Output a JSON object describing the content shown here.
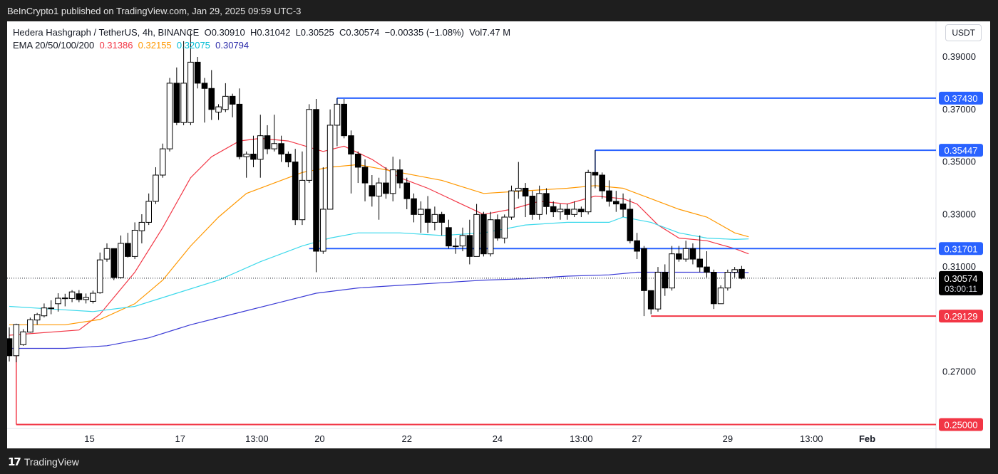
{
  "publisher": "BeInCrypto1 published on TradingView.com, Jan 29, 2025 09:59 UTC-3",
  "brand": "TradingView",
  "currency_button": "USDT",
  "legend": {
    "symbol": "Hedera Hashgraph / TetherUS, 4h, BINANCE",
    "o_label": "O",
    "o": "0.30910",
    "h_label": "H",
    "h": "0.31042",
    "l_label": "L",
    "l": "0.30525",
    "c_label": "C",
    "c": "0.30574",
    "change": "−0.00335 (−1.08%)",
    "vol_label": "Vol",
    "vol": "7.47 M",
    "ema_label": "EMA 20/50/100/200",
    "ema20": "0.31386",
    "ema50": "0.32155",
    "ema100": "0.32075",
    "ema200": "0.30794"
  },
  "colors": {
    "up": "#ffffff",
    "down": "#000000",
    "candle_border": "#000000",
    "ema20": "#f23645",
    "ema50": "#ff9800",
    "ema100": "#3dd9eb",
    "ema200": "#3d3dd6",
    "resistance": "#2962ff",
    "support": "#f23645",
    "price_tag": "#000000"
  },
  "chart_data": {
    "type": "candlestick",
    "ylim": [
      0.2485,
      0.4022
    ],
    "yticks": [
      "0.39000",
      "0.37000",
      "0.35000",
      "0.33000",
      "0.31000",
      "0.29000",
      "0.27000"
    ],
    "xticks": [
      "15",
      "17",
      "13:00",
      "20",
      "22",
      "24",
      "13:00",
      "27",
      "29",
      "13:00",
      "Feb"
    ],
    "candles": [
      [
        0.2827,
        0.2762,
        0.287,
        0.274
      ],
      [
        0.2762,
        0.2881,
        0.2884,
        0.2737
      ],
      [
        0.2804,
        0.2853,
        0.2863,
        0.28
      ],
      [
        0.2852,
        0.2899,
        0.2907,
        0.285
      ],
      [
        0.2898,
        0.2919,
        0.2925,
        0.288
      ],
      [
        0.2914,
        0.2944,
        0.2961,
        0.2908
      ],
      [
        0.2944,
        0.2944,
        0.2973,
        0.292
      ],
      [
        0.296,
        0.2981,
        0.3,
        0.293
      ],
      [
        0.2981,
        0.2982,
        0.2998,
        0.295
      ],
      [
        0.298,
        0.3005,
        0.3012,
        0.2966
      ],
      [
        0.2998,
        0.2976,
        0.3012,
        0.2966
      ],
      [
        0.2976,
        0.2984,
        0.2999,
        0.2961
      ],
      [
        0.2969,
        0.3,
        0.301,
        0.2961
      ],
      [
        0.3002,
        0.3127,
        0.3155,
        0.2998
      ],
      [
        0.313,
        0.317,
        0.319,
        0.312
      ],
      [
        0.317,
        0.306,
        0.317,
        0.305
      ],
      [
        0.306,
        0.319,
        0.322,
        0.3055
      ],
      [
        0.319,
        0.314,
        0.323,
        0.3136
      ],
      [
        0.314,
        0.324,
        0.327,
        0.313
      ],
      [
        0.3238,
        0.327,
        0.3301,
        0.319
      ],
      [
        0.327,
        0.335,
        0.338,
        0.326
      ],
      [
        0.335,
        0.345,
        0.348,
        0.334
      ],
      [
        0.345,
        0.355,
        0.357,
        0.344
      ],
      [
        0.355,
        0.38,
        0.382,
        0.354
      ],
      [
        0.38,
        0.365,
        0.386,
        0.364
      ],
      [
        0.365,
        0.38,
        0.396,
        0.364
      ],
      [
        0.365,
        0.388,
        0.4,
        0.364
      ],
      [
        0.388,
        0.38,
        0.39,
        0.378
      ],
      [
        0.38,
        0.378,
        0.382,
        0.365
      ],
      [
        0.378,
        0.37,
        0.385,
        0.366
      ],
      [
        0.369,
        0.371,
        0.372,
        0.366
      ],
      [
        0.37,
        0.375,
        0.38,
        0.369
      ],
      [
        0.375,
        0.372,
        0.376,
        0.367
      ],
      [
        0.372,
        0.352,
        0.378,
        0.351
      ],
      [
        0.352,
        0.353,
        0.354,
        0.344
      ],
      [
        0.353,
        0.351,
        0.36,
        0.348
      ],
      [
        0.351,
        0.36,
        0.368,
        0.344
      ],
      [
        0.36,
        0.355,
        0.364,
        0.353
      ],
      [
        0.355,
        0.357,
        0.368,
        0.354
      ],
      [
        0.357,
        0.353,
        0.36,
        0.35
      ],
      [
        0.353,
        0.35,
        0.354,
        0.348
      ],
      [
        0.35,
        0.328,
        0.355,
        0.326
      ],
      [
        0.328,
        0.343,
        0.354,
        0.326
      ],
      [
        0.343,
        0.37,
        0.372,
        0.342
      ],
      [
        0.37,
        0.316,
        0.374,
        0.308
      ],
      [
        0.316,
        0.332,
        0.348,
        0.315
      ],
      [
        0.332,
        0.364,
        0.37,
        0.332
      ],
      [
        0.364,
        0.372,
        0.3743,
        0.356
      ],
      [
        0.372,
        0.36,
        0.374,
        0.359
      ],
      [
        0.36,
        0.353,
        0.362,
        0.338
      ],
      [
        0.353,
        0.348,
        0.354,
        0.342
      ],
      [
        0.348,
        0.342,
        0.351,
        0.335
      ],
      [
        0.341,
        0.337,
        0.345,
        0.333
      ],
      [
        0.337,
        0.342,
        0.344,
        0.328
      ],
      [
        0.342,
        0.338,
        0.348,
        0.336
      ],
      [
        0.338,
        0.347,
        0.352,
        0.335
      ],
      [
        0.347,
        0.342,
        0.351,
        0.34
      ],
      [
        0.342,
        0.336,
        0.344,
        0.332
      ],
      [
        0.336,
        0.33,
        0.338,
        0.327
      ],
      [
        0.33,
        0.332,
        0.335,
        0.323
      ],
      [
        0.332,
        0.327,
        0.337,
        0.323
      ],
      [
        0.327,
        0.33,
        0.333,
        0.324
      ],
      [
        0.33,
        0.327,
        0.331,
        0.322
      ],
      [
        0.325,
        0.318,
        0.328,
        0.317
      ],
      [
        0.318,
        0.318,
        0.321,
        0.315
      ],
      [
        0.318,
        0.322,
        0.325,
        0.316
      ],
      [
        0.322,
        0.314,
        0.328,
        0.311
      ],
      [
        0.314,
        0.33,
        0.334,
        0.314
      ],
      [
        0.33,
        0.315,
        0.331,
        0.314
      ],
      [
        0.315,
        0.328,
        0.331,
        0.314
      ],
      [
        0.328,
        0.321,
        0.33,
        0.32
      ],
      [
        0.321,
        0.329,
        0.33,
        0.319
      ],
      [
        0.329,
        0.339,
        0.341,
        0.328
      ],
      [
        0.339,
        0.34,
        0.35,
        0.336
      ],
      [
        0.34,
        0.337,
        0.342,
        0.329
      ],
      [
        0.337,
        0.33,
        0.339,
        0.328
      ],
      [
        0.33,
        0.338,
        0.341,
        0.328
      ],
      [
        0.338,
        0.333,
        0.34,
        0.33
      ],
      [
        0.333,
        0.331,
        0.335,
        0.329
      ],
      [
        0.331,
        0.332,
        0.334,
        0.328
      ],
      [
        0.332,
        0.33,
        0.334,
        0.328
      ],
      [
        0.33,
        0.332,
        0.335,
        0.329
      ],
      [
        0.332,
        0.331,
        0.333,
        0.329
      ],
      [
        0.331,
        0.346,
        0.347,
        0.33
      ],
      [
        0.346,
        0.345,
        0.3545,
        0.34
      ],
      [
        0.345,
        0.339,
        0.346,
        0.336
      ],
      [
        0.339,
        0.335,
        0.343,
        0.333
      ],
      [
        0.335,
        0.334,
        0.339,
        0.331
      ],
      [
        0.334,
        0.332,
        0.338,
        0.329
      ],
      [
        0.332,
        0.32,
        0.336,
        0.319
      ],
      [
        0.32,
        0.316,
        0.323,
        0.313
      ],
      [
        0.317,
        0.301,
        0.318,
        0.2913
      ],
      [
        0.301,
        0.294,
        0.301,
        0.292
      ],
      [
        0.294,
        0.308,
        0.31,
        0.293
      ],
      [
        0.308,
        0.302,
        0.311,
        0.299
      ],
      [
        0.302,
        0.315,
        0.318,
        0.301
      ],
      [
        0.315,
        0.313,
        0.318,
        0.312
      ],
      [
        0.313,
        0.317,
        0.32,
        0.312
      ],
      [
        0.317,
        0.313,
        0.319,
        0.311
      ],
      [
        0.313,
        0.31,
        0.322,
        0.308
      ],
      [
        0.31,
        0.308,
        0.316,
        0.306
      ],
      [
        0.308,
        0.296,
        0.309,
        0.294
      ],
      [
        0.296,
        0.302,
        0.303,
        0.296
      ],
      [
        0.302,
        0.308,
        0.309,
        0.301
      ],
      [
        0.308,
        0.309,
        0.31,
        0.306
      ],
      [
        0.3091,
        0.3057,
        0.3104,
        0.3053
      ]
    ],
    "ema": [
      {
        "name": "EMA 20",
        "color": "#f23645",
        "points": [
          [
            0,
            0.284
          ],
          [
            10,
            0.286
          ],
          [
            13,
            0.292
          ],
          [
            18,
            0.308
          ],
          [
            22,
            0.325
          ],
          [
            26,
            0.344
          ],
          [
            29,
            0.352
          ],
          [
            33,
            0.358
          ],
          [
            36,
            0.359
          ],
          [
            40,
            0.358
          ],
          [
            45,
            0.354
          ],
          [
            48,
            0.356
          ],
          [
            52,
            0.351
          ],
          [
            56,
            0.344
          ],
          [
            60,
            0.34
          ],
          [
            64,
            0.335
          ],
          [
            68,
            0.33
          ],
          [
            72,
            0.332
          ],
          [
            76,
            0.335
          ],
          [
            80,
            0.334
          ],
          [
            84,
            0.337
          ],
          [
            88,
            0.336
          ],
          [
            90,
            0.334
          ],
          [
            93,
            0.326
          ],
          [
            96,
            0.321
          ],
          [
            100,
            0.32
          ],
          [
            104,
            0.317
          ],
          [
            106,
            0.315
          ]
        ]
      },
      {
        "name": "EMA 50",
        "color": "#ff9800",
        "points": [
          [
            0,
            0.288
          ],
          [
            8,
            0.288
          ],
          [
            13,
            0.29
          ],
          [
            18,
            0.296
          ],
          [
            22,
            0.305
          ],
          [
            26,
            0.318
          ],
          [
            30,
            0.329
          ],
          [
            34,
            0.338
          ],
          [
            38,
            0.342
          ],
          [
            42,
            0.346
          ],
          [
            46,
            0.348
          ],
          [
            50,
            0.349
          ],
          [
            56,
            0.346
          ],
          [
            62,
            0.343
          ],
          [
            68,
            0.338
          ],
          [
            74,
            0.339
          ],
          [
            80,
            0.34
          ],
          [
            84,
            0.341
          ],
          [
            88,
            0.34
          ],
          [
            92,
            0.336
          ],
          [
            96,
            0.332
          ],
          [
            100,
            0.329
          ],
          [
            104,
            0.323
          ],
          [
            106,
            0.3215
          ]
        ]
      },
      {
        "name": "EMA 100",
        "color": "#3dd9eb",
        "points": [
          [
            0,
            0.295
          ],
          [
            6,
            0.294
          ],
          [
            12,
            0.293
          ],
          [
            18,
            0.295
          ],
          [
            24,
            0.3
          ],
          [
            30,
            0.305
          ],
          [
            36,
            0.312
          ],
          [
            42,
            0.318
          ],
          [
            46,
            0.321
          ],
          [
            50,
            0.323
          ],
          [
            56,
            0.323
          ],
          [
            62,
            0.322
          ],
          [
            68,
            0.323
          ],
          [
            74,
            0.326
          ],
          [
            80,
            0.327
          ],
          [
            86,
            0.327
          ],
          [
            88,
            0.329
          ],
          [
            92,
            0.327
          ],
          [
            96,
            0.323
          ],
          [
            100,
            0.321
          ],
          [
            104,
            0.3205
          ],
          [
            106,
            0.3207
          ]
        ]
      },
      {
        "name": "EMA 200",
        "color": "#3d3dd6",
        "points": [
          [
            0,
            0.279
          ],
          [
            8,
            0.279
          ],
          [
            14,
            0.28
          ],
          [
            20,
            0.283
          ],
          [
            26,
            0.288
          ],
          [
            32,
            0.292
          ],
          [
            38,
            0.296
          ],
          [
            44,
            0.3
          ],
          [
            50,
            0.302
          ],
          [
            56,
            0.303
          ],
          [
            62,
            0.304
          ],
          [
            68,
            0.305
          ],
          [
            74,
            0.3055
          ],
          [
            80,
            0.3065
          ],
          [
            86,
            0.307
          ],
          [
            90,
            0.308
          ],
          [
            96,
            0.308
          ],
          [
            100,
            0.308
          ],
          [
            106,
            0.3079
          ]
        ]
      }
    ],
    "levels": [
      {
        "value": 0.3743,
        "label": "0.37430",
        "kind": "resistance",
        "from": 47
      },
      {
        "value": 0.35447,
        "label": "0.35447",
        "kind": "resistance",
        "from": 84
      },
      {
        "value": 0.31701,
        "label": "0.31701",
        "kind": "resistance",
        "from": 43
      },
      {
        "value": 0.29129,
        "label": "0.29129",
        "kind": "support",
        "from": 92
      },
      {
        "value": 0.25,
        "label": "0.25000",
        "kind": "support",
        "from": 1
      }
    ],
    "last_price": {
      "value": 0.30574,
      "label": "0.30574",
      "countdown": "03:00:11"
    }
  }
}
